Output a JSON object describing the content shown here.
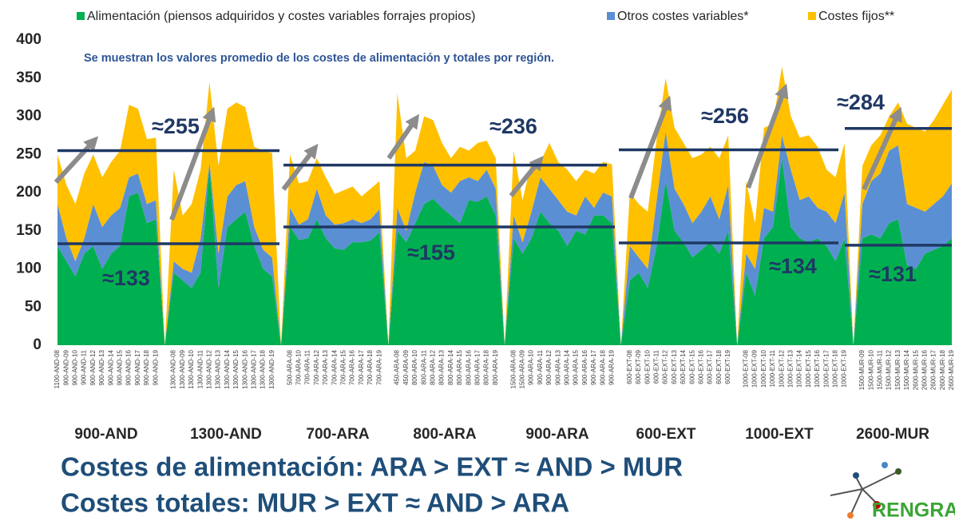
{
  "chart_data": {
    "type": "stacked_area",
    "subtitle": "Se muestran los valores promedio de los costes de alimentación y totales por región.",
    "categories": [
      "1100-AND-08",
      "900-AND-09",
      "900-AND-10",
      "900-AND-11",
      "900-AND-12",
      "900-AND-13",
      "900-AND-14",
      "900-AND-15",
      "900-AND-16",
      "900-AND-17",
      "900-AND-18",
      "900-AND-19",
      null,
      "1300-AND-08",
      "1300-AND-09",
      "1300-AND-10",
      "1300-AND-11",
      "1300-AND-12",
      "1300-AND-13",
      "1300-AND-14",
      "1300-AND-15",
      "1300-AND-16",
      "1300-AND-17",
      "1300-AND-18",
      "1300-AND-19",
      null,
      "500-ARA-08",
      "700-ARA-10",
      "700-ARA-11",
      "700-ARA-12",
      "700-ARA-13",
      "700-ARA-14",
      "700-ARA-15",
      "700-ARA-16",
      "700-ARA-17",
      "700-ARA-18",
      "700-ARA-19",
      null,
      "450-ARA-08",
      "450-ARA-09",
      "800-ARA-10",
      "800-ARA-11",
      "800-ARA-12",
      "800-ARA-13",
      "800-ARA-14",
      "800-ARA-15",
      "800-ARA-16",
      "800-ARA-17",
      "800-ARA-18",
      "800-ARA-19",
      null,
      "1500-ARA-08",
      "1500-ARA-09",
      "900-ARA-10",
      "900-ARA-11",
      "900-ARA-12",
      "900-ARA-13",
      "900-ARA-14",
      "900-ARA-15",
      "900-ARA-16",
      "900-ARA-17",
      "900-ARA-18",
      "900-ARA-19",
      null,
      "600-EXT-08",
      "600-EXT-09",
      "600-EXT-10",
      "600-EXT-11",
      "600-EXT-12",
      "600-EXT-13",
      "600-EXT-14",
      "600-EXT-15",
      "600-EXT-16",
      "600-EXT-17",
      "600-EXT-18",
      "600-EXT-19",
      null,
      "1000-EXT-08",
      "1000-EXT-09",
      "1000-EXT-10",
      "1000-EXT-11",
      "1000-EXT-12",
      "1000-EXT-13",
      "1000-EXT-14",
      "1000-EXT-15",
      "1000-EXT-16",
      "1000-EXT-17",
      "1000-EXT-18",
      "1000-EXT-19",
      null,
      "1500-MUR-09",
      "1500-MUR-10",
      "1500-MUR-11",
      "1500-MUR-12",
      "1500-MUR-13",
      "1500-MUR-14",
      "2600-MUR-15",
      "2600-MUR-16",
      "2600-MUR-17",
      "2600-MUR-18",
      "2600-MUR-19"
    ],
    "series": [
      {
        "name": "Alimentación (piensos adquiridos y costes variables forrajes propios)",
        "color": "#00b050",
        "values": [
          130,
          110,
          90,
          120,
          130,
          100,
          120,
          130,
          195,
          200,
          160,
          165,
          0,
          95,
          85,
          75,
          95,
          235,
          75,
          155,
          165,
          175,
          130,
          100,
          90,
          0,
          155,
          138,
          140,
          165,
          140,
          127,
          125,
          135,
          135,
          137,
          148,
          0,
          150,
          135,
          160,
          185,
          192,
          180,
          170,
          160,
          190,
          188,
          195,
          170,
          0,
          140,
          120,
          140,
          175,
          160,
          150,
          130,
          150,
          145,
          170,
          170,
          160,
          0,
          85,
          95,
          75,
          130,
          215,
          150,
          135,
          115,
          125,
          135,
          120,
          150,
          0,
          95,
          65,
          140,
          155,
          245,
          155,
          140,
          135,
          140,
          130,
          110,
          140,
          0,
          140,
          145,
          140,
          160,
          165,
          105,
          100,
          120,
          125,
          130,
          140
        ]
      },
      {
        "name": "Otros costes variables*",
        "color": "#5b8fd4",
        "values": [
          55,
          30,
          20,
          20,
          55,
          55,
          50,
          50,
          25,
          25,
          25,
          25,
          0,
          15,
          15,
          20,
          45,
          5,
          45,
          40,
          45,
          40,
          25,
          25,
          25,
          0,
          25,
          20,
          25,
          40,
          30,
          31,
          35,
          30,
          25,
          28,
          30,
          0,
          30,
          15,
          40,
          55,
          43,
          30,
          30,
          55,
          30,
          27,
          35,
          35,
          0,
          30,
          15,
          35,
          45,
          45,
          40,
          45,
          20,
          50,
          10,
          30,
          35,
          0,
          45,
          20,
          25,
          60,
          65,
          55,
          50,
          45,
          50,
          60,
          45,
          60,
          0,
          25,
          35,
          40,
          20,
          30,
          75,
          50,
          60,
          40,
          45,
          50,
          60,
          0,
          45,
          70,
          85,
          95,
          97,
          80,
          80,
          55,
          60,
          65,
          72
        ]
      },
      {
        "name": "Costes fijos**",
        "color": "#ffc000",
        "values": [
          65,
          70,
          75,
          85,
          65,
          65,
          70,
          75,
          95,
          85,
          85,
          82,
          0,
          120,
          70,
          90,
          90,
          105,
          115,
          115,
          108,
          97,
          105,
          130,
          137,
          0,
          70,
          54,
          50,
          40,
          50,
          40,
          43,
          43,
          35,
          40,
          37,
          0,
          150,
          95,
          55,
          60,
          60,
          55,
          45,
          45,
          35,
          50,
          38,
          40,
          0,
          85,
          55,
          65,
          20,
          60,
          50,
          55,
          45,
          35,
          45,
          40,
          42,
          0,
          70,
          70,
          75,
          80,
          70,
          80,
          80,
          85,
          75,
          65,
          80,
          65,
          0,
          95,
          60,
          105,
          115,
          90,
          70,
          82,
          80,
          80,
          55,
          60,
          65,
          0,
          50,
          47,
          50,
          45,
          56,
          105,
          105,
          105,
          110,
          120,
          123
        ]
      }
    ],
    "ylim": [
      0,
      400
    ],
    "yticks": [
      0,
      50,
      100,
      150,
      200,
      250,
      300,
      350,
      400
    ],
    "averages": [
      {
        "total": 255,
        "total_label": "≈255",
        "feed": 133,
        "feed_label": "≈133"
      },
      {
        "total": 236,
        "total_label": "≈236",
        "feed": 155,
        "feed_label": "≈155"
      },
      {
        "total": 256,
        "total_label": "≈256",
        "feed": 134,
        "feed_label": "≈134"
      },
      {
        "total": 284,
        "total_label": "≈284",
        "feed": 131,
        "feed_label": "≈131"
      }
    ],
    "group_labels": [
      "900-AND",
      "1300-AND",
      "700-ARA",
      "800-ARA",
      "900-ARA",
      "600-EXT",
      "1000-EXT",
      "2600-MUR"
    ],
    "conclusions": [
      "Costes de alimentación: ARA > EXT ≈ AND > MUR",
      "Costes totales: MUR > EXT ≈ AND > ARA"
    ],
    "logo": "RENGRAT"
  }
}
